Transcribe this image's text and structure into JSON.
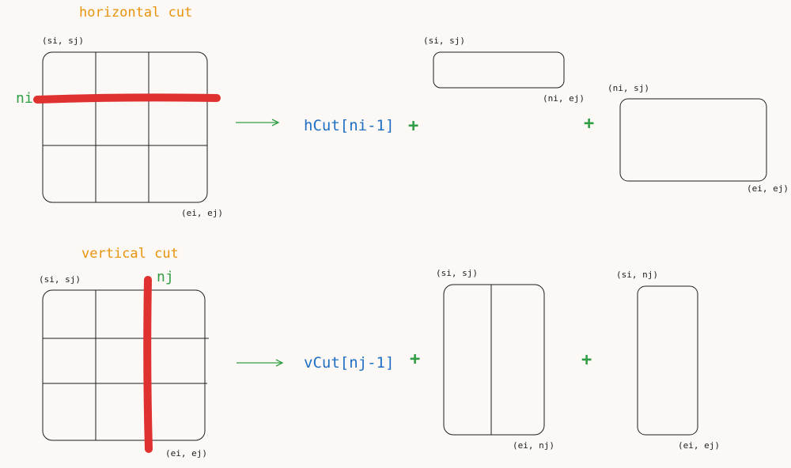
{
  "horizontal": {
    "title": "horizontal cut",
    "grid_start": "(si, sj)",
    "grid_end": "(ei, ej)",
    "cut_label": "ni",
    "formula": "hCut[ni-1]",
    "plus": "+",
    "top_piece_start": "(si, sj)",
    "top_piece_end": "(ni, ej)",
    "bottom_piece_start": "(ni, sj)",
    "bottom_piece_end": "(ei, ej)"
  },
  "vertical": {
    "title": "vertical cut",
    "grid_start": "(si, sj)",
    "grid_end": "(ei, ej)",
    "cut_label": "nj",
    "formula": "vCut[nj-1]",
    "plus": "+",
    "left_piece_start": "(si, sj)",
    "left_piece_end": "(ei, nj)",
    "right_piece_start": "(si, nj)",
    "right_piece_end": "(ei, ej)"
  },
  "colors": {
    "cut": "#e03131",
    "arrow": "#2f9e44",
    "formula": "#1f6fc4",
    "title": "#e8930c",
    "stroke": "#1e1e1e"
  }
}
